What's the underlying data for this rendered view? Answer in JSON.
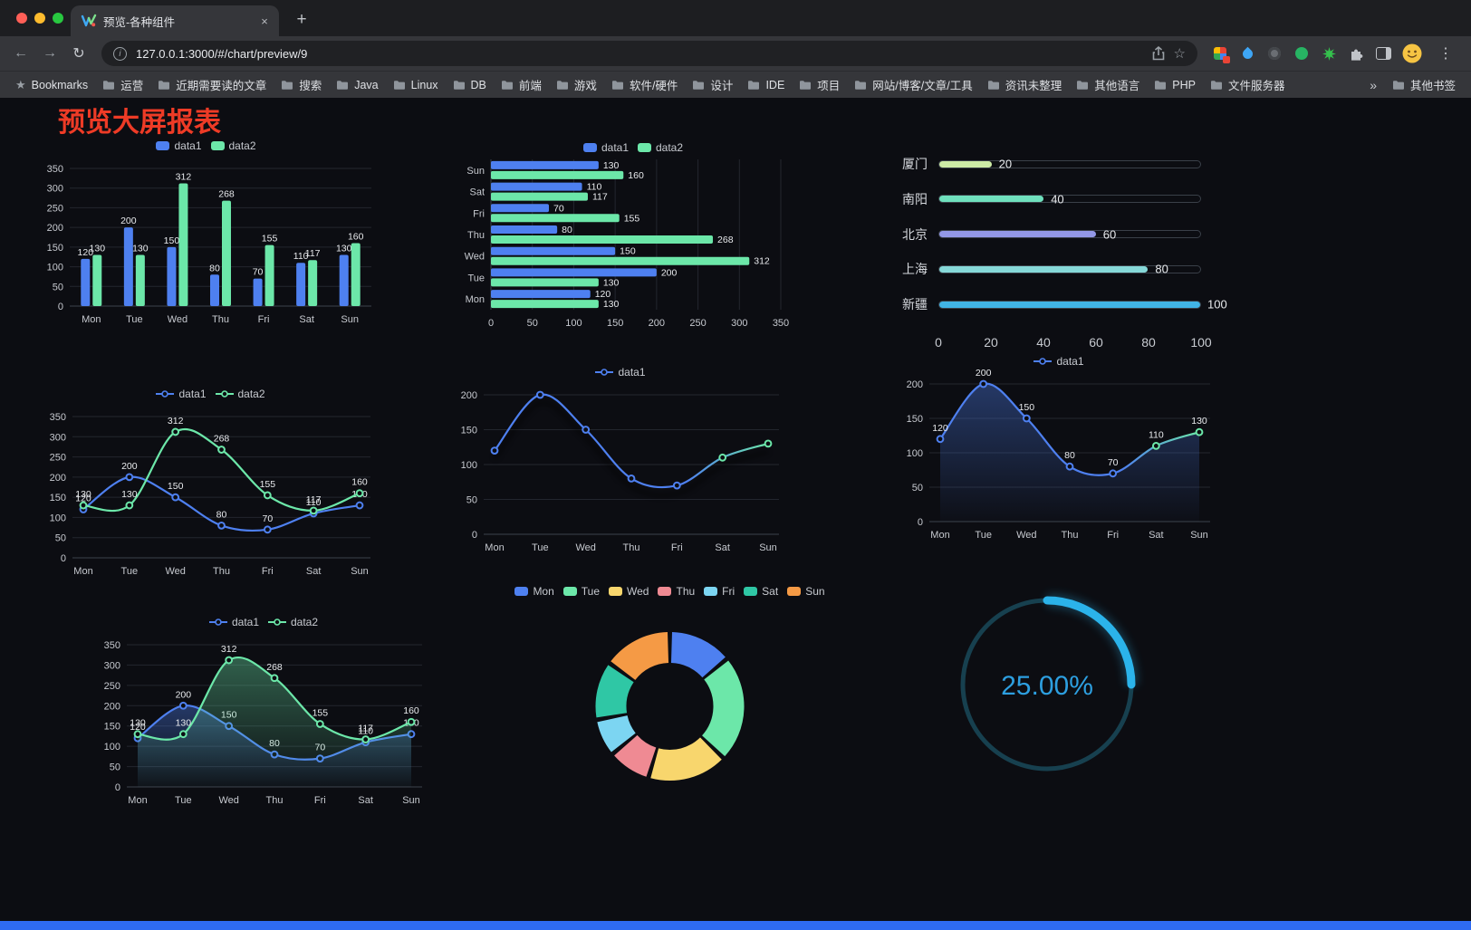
{
  "browser": {
    "tab_title": "预览-各种组件",
    "url": "127.0.0.1:3000/#/chart/preview/9"
  },
  "icons": {
    "back": "←",
    "forward": "→",
    "reload": "↻",
    "info": "i",
    "star": "☆",
    "menu": "⋮",
    "plus": "+",
    "close_tab": "×",
    "bookmarks_star": "★",
    "overflow_chevron": "»"
  },
  "bookmarks_bar": {
    "items": [
      {
        "label": "Bookmarks",
        "icon": "star"
      },
      {
        "label": "运营",
        "icon": "folder"
      },
      {
        "label": "近期需要读的文章",
        "icon": "folder"
      },
      {
        "label": "搜索",
        "icon": "folder"
      },
      {
        "label": "Java",
        "icon": "folder"
      },
      {
        "label": "Linux",
        "icon": "folder"
      },
      {
        "label": "DB",
        "icon": "folder"
      },
      {
        "label": "前端",
        "icon": "folder"
      },
      {
        "label": "游戏",
        "icon": "folder"
      },
      {
        "label": "软件/硬件",
        "icon": "folder"
      },
      {
        "label": "设计",
        "icon": "folder"
      },
      {
        "label": "IDE",
        "icon": "folder"
      },
      {
        "label": "项目",
        "icon": "folder"
      },
      {
        "label": "网站/博客/文章/工具",
        "icon": "folder"
      },
      {
        "label": "资讯未整理",
        "icon": "folder"
      },
      {
        "label": "其他语言",
        "icon": "folder"
      },
      {
        "label": "PHP",
        "icon": "folder"
      },
      {
        "label": "文件服务器",
        "icon": "folder"
      }
    ],
    "overflow_chevron": "»",
    "other_bookmarks": {
      "label": "其他书签",
      "icon": "folder"
    }
  },
  "page": {
    "title": "预览大屏报表",
    "title_color": "#ee3b26",
    "background": "#0c0d12",
    "footer_color": "#2e6bf2"
  },
  "chart_data": [
    {
      "id": "grouped-bar",
      "type": "bar",
      "categories": [
        "Mon",
        "Tue",
        "Wed",
        "Thu",
        "Fri",
        "Sat",
        "Sun"
      ],
      "series": [
        {
          "name": "data1",
          "color": "#4e80f0",
          "values": [
            120,
            200,
            150,
            80,
            70,
            110,
            130
          ]
        },
        {
          "name": "data2",
          "color": "#6ce7a9",
          "values": [
            130,
            130,
            312,
            268,
            155,
            117,
            160
          ]
        }
      ],
      "ylim": [
        0,
        350
      ],
      "ytick_step": 50,
      "show_labels": true,
      "legend": {
        "marker": "rect",
        "position": "top"
      }
    },
    {
      "id": "grouped-hbar",
      "type": "bar",
      "variant": "horizontal",
      "categories": [
        "Mon",
        "Tue",
        "Wed",
        "Thu",
        "Fri",
        "Sat",
        "Sun"
      ],
      "series": [
        {
          "name": "data1",
          "color": "#4e80f0",
          "values": [
            120,
            200,
            150,
            80,
            70,
            110,
            130
          ]
        },
        {
          "name": "data2",
          "color": "#6ce7a9",
          "values": [
            130,
            130,
            312,
            268,
            155,
            117,
            160
          ]
        }
      ],
      "xlim": [
        0,
        350
      ],
      "xtick_step": 50,
      "show_labels": true,
      "legend": {
        "marker": "rect",
        "position": "top"
      }
    },
    {
      "id": "city-progress",
      "type": "bar",
      "variant": "progress-list",
      "items": [
        {
          "label": "厦门",
          "value": 20,
          "color": "#cdeba6"
        },
        {
          "label": "南阳",
          "value": 40,
          "color": "#6fe0bd"
        },
        {
          "label": "北京",
          "value": 60,
          "color": "#9297e6"
        },
        {
          "label": "上海",
          "value": 80,
          "color": "#86d8d8"
        },
        {
          "label": "新疆",
          "value": 100,
          "color": "#41b4e6"
        }
      ],
      "xlim": [
        0,
        100
      ],
      "xticks": [
        0,
        20,
        40,
        60,
        80,
        100
      ]
    },
    {
      "id": "line-two-series",
      "type": "line",
      "categories": [
        "Mon",
        "Tue",
        "Wed",
        "Thu",
        "Fri",
        "Sat",
        "Sun"
      ],
      "series": [
        {
          "name": "data1",
          "color": "#4e80f0",
          "values": [
            120,
            200,
            150,
            80,
            70,
            110,
            130
          ]
        },
        {
          "name": "data2",
          "color": "#6ce7a9",
          "values": [
            130,
            130,
            312,
            268,
            155,
            117,
            160
          ]
        }
      ],
      "ylim": [
        0,
        350
      ],
      "ytick_step": 50,
      "show_labels": true,
      "smooth": true,
      "legend": {
        "marker": "line",
        "position": "top"
      }
    },
    {
      "id": "gradient-line",
      "type": "line",
      "categories": [
        "Mon",
        "Tue",
        "Wed",
        "Thu",
        "Fri",
        "Sat",
        "Sun"
      ],
      "series": [
        {
          "name": "data1",
          "color": "#4e80f0",
          "color_end": "#6ce7a9",
          "values": [
            120,
            200,
            150,
            80,
            70,
            110,
            130
          ]
        }
      ],
      "ylim": [
        0,
        200
      ],
      "ytick_step": 50,
      "show_labels": false,
      "smooth": true,
      "shadow": true,
      "legend": {
        "marker": "line",
        "position": "top"
      }
    },
    {
      "id": "area-line",
      "type": "line",
      "area": true,
      "categories": [
        "Mon",
        "Tue",
        "Wed",
        "Thu",
        "Fri",
        "Sat",
        "Sun"
      ],
      "series": [
        {
          "name": "data1",
          "color": "#4e80f0",
          "color_end": "#6ce7a9",
          "values": [
            120,
            200,
            150,
            80,
            70,
            110,
            130
          ]
        }
      ],
      "ylim": [
        0,
        200
      ],
      "ytick_step": 50,
      "show_labels": true,
      "smooth": true,
      "legend": {
        "marker": "line",
        "position": "top"
      }
    },
    {
      "id": "two-series-area",
      "type": "line",
      "area": true,
      "categories": [
        "Mon",
        "Tue",
        "Wed",
        "Thu",
        "Fri",
        "Sat",
        "Sun"
      ],
      "series": [
        {
          "name": "data1",
          "color": "#4e80f0",
          "values": [
            120,
            200,
            150,
            80,
            70,
            110,
            130
          ]
        },
        {
          "name": "data2",
          "color": "#6ce7a9",
          "values": [
            130,
            130,
            312,
            268,
            155,
            117,
            160
          ]
        }
      ],
      "ylim": [
        0,
        350
      ],
      "ytick_step": 50,
      "show_labels": true,
      "smooth": true,
      "legend": {
        "marker": "line",
        "position": "top"
      }
    },
    {
      "id": "weekday-donut",
      "type": "pie",
      "donut": true,
      "items": [
        {
          "label": "Mon",
          "value": 120,
          "color": "#4e80f0"
        },
        {
          "label": "Tue",
          "value": 200,
          "color": "#6ce7a9"
        },
        {
          "label": "Wed",
          "value": 150,
          "color": "#f8d66d"
        },
        {
          "label": "Thu",
          "value": 80,
          "color": "#ef8a93"
        },
        {
          "label": "Fri",
          "value": 70,
          "color": "#7cd5f2"
        },
        {
          "label": "Sat",
          "value": 110,
          "color": "#2fc7a5"
        },
        {
          "label": "Sun",
          "value": 130,
          "color": "#f59a45"
        }
      ],
      "legend": {
        "marker": "rect",
        "position": "top"
      }
    },
    {
      "id": "percent-gauge",
      "type": "gauge",
      "value": 25,
      "display": "25.00%",
      "color": "#2bb3ea",
      "track_color": "#17404f",
      "text_color": "#2d9fe0"
    }
  ]
}
